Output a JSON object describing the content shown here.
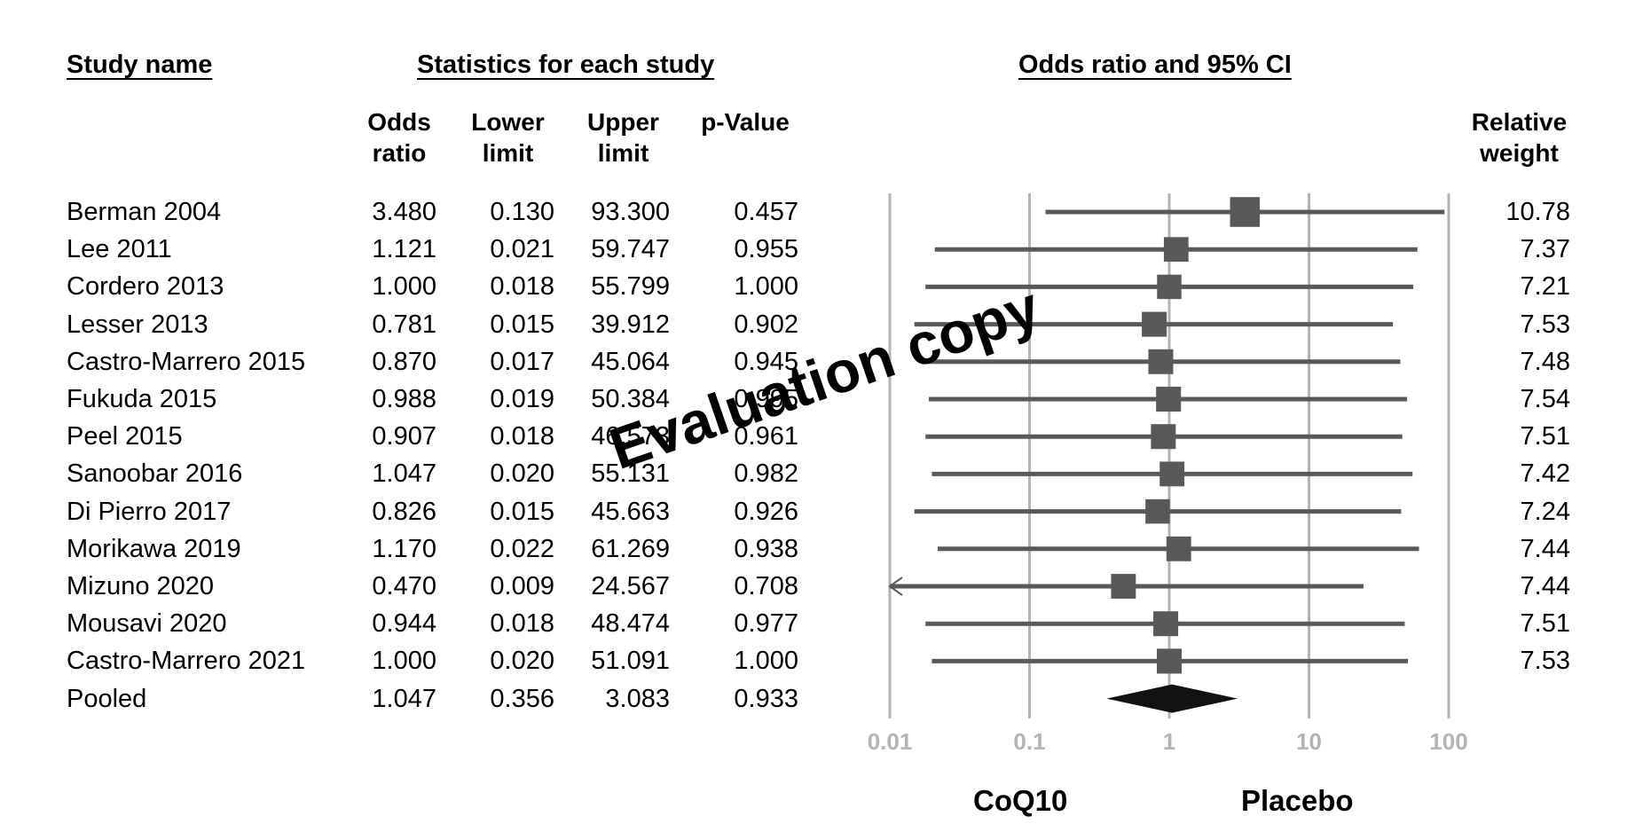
{
  "headers": {
    "study_name": "Study name",
    "stats": "Statistics for each study",
    "plot": "Odds ratio and 95% CI",
    "odds_ratio": [
      "Odds",
      "ratio"
    ],
    "lower_limit": [
      "Lower",
      "limit"
    ],
    "upper_limit": [
      "Upper",
      "limit"
    ],
    "p_value": [
      "",
      "p-Value"
    ],
    "relative_weight": [
      "Relative",
      "weight"
    ]
  },
  "labels": {
    "left": "CoQ10",
    "right": "Placebo"
  },
  "watermark": "Evaluation copy",
  "colors": {
    "marker": "#595959",
    "gridline": "#b3b3b3",
    "tick_label": "#b3b3b3",
    "diamond": "#111111"
  },
  "chart_data": {
    "type": "forest",
    "x_scale": "log",
    "x_ticks": [
      0.01,
      0.1,
      1,
      10,
      100
    ],
    "x_tick_labels": [
      "0.01",
      "0.1",
      "1",
      "10",
      "100"
    ],
    "xlim": [
      0.01,
      100
    ],
    "grid": true,
    "rows": [
      {
        "study": "Berman 2004",
        "or": "3.480",
        "lower": "0.130",
        "upper": "93.300",
        "p": "0.457",
        "weight": "10.78"
      },
      {
        "study": "Lee 2011",
        "or": "1.121",
        "lower": "0.021",
        "upper": "59.747",
        "p": "0.955",
        "weight": "7.37"
      },
      {
        "study": "Cordero 2013",
        "or": "1.000",
        "lower": "0.018",
        "upper": "55.799",
        "p": "1.000",
        "weight": "7.21"
      },
      {
        "study": "Lesser 2013",
        "or": "0.781",
        "lower": "0.015",
        "upper": "39.912",
        "p": "0.902",
        "weight": "7.53"
      },
      {
        "study": "Castro-Marrero 2015",
        "or": "0.870",
        "lower": "0.017",
        "upper": "45.064",
        "p": "0.945",
        "weight": "7.48"
      },
      {
        "study": "Fukuda 2015",
        "or": "0.988",
        "lower": "0.019",
        "upper": "50.384",
        "p": "0.995",
        "weight": "7.54"
      },
      {
        "study": "Peel 2015",
        "or": "0.907",
        "lower": "0.018",
        "upper": "46.573",
        "p": "0.961",
        "weight": "7.51"
      },
      {
        "study": "Sanoobar 2016",
        "or": "1.047",
        "lower": "0.020",
        "upper": "55.131",
        "p": "0.982",
        "weight": "7.42"
      },
      {
        "study": "Di Pierro 2017",
        "or": "0.826",
        "lower": "0.015",
        "upper": "45.663",
        "p": "0.926",
        "weight": "7.24"
      },
      {
        "study": "Morikawa 2019",
        "or": "1.170",
        "lower": "0.022",
        "upper": "61.269",
        "p": "0.938",
        "weight": "7.44"
      },
      {
        "study": "Mizuno 2020",
        "or": "0.470",
        "lower": "0.009",
        "upper": "24.567",
        "p": "0.708",
        "weight": "7.44"
      },
      {
        "study": "Mousavi 2020",
        "or": "0.944",
        "lower": "0.018",
        "upper": "48.474",
        "p": "0.977",
        "weight": "7.51"
      },
      {
        "study": "Castro-Marrero 2021",
        "or": "1.000",
        "lower": "0.020",
        "upper": "51.091",
        "p": "1.000",
        "weight": "7.53"
      }
    ],
    "pooled": {
      "study": "Pooled",
      "or": "1.047",
      "lower": "0.356",
      "upper": "3.083",
      "p": "0.933"
    }
  }
}
